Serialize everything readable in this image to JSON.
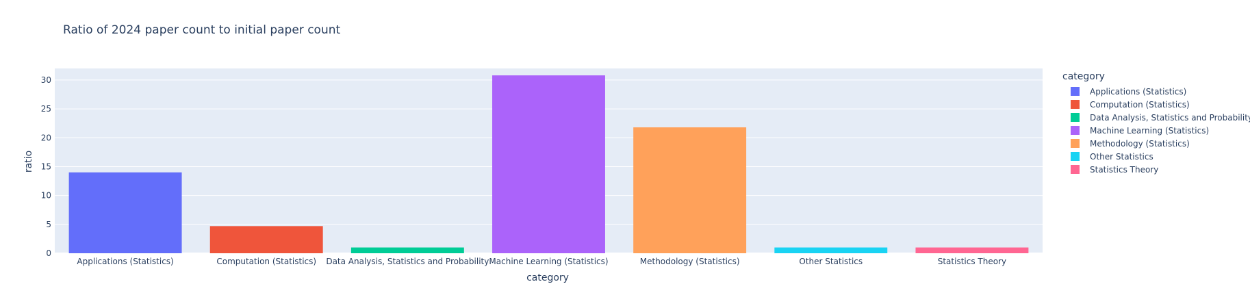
{
  "chart_data": {
    "type": "bar",
    "title": "Ratio of 2024 paper count to initial paper count",
    "xlabel": "category",
    "ylabel": "ratio",
    "ylim": [
      0,
      32
    ],
    "yticks": [
      0,
      5,
      10,
      15,
      20,
      25,
      30
    ],
    "grid": true,
    "legend_title": "category",
    "legend_position": "right",
    "categories": [
      "Applications (Statistics)",
      "Computation (Statistics)",
      "Data Analysis, Statistics and Probability",
      "Machine Learning (Statistics)",
      "Methodology (Statistics)",
      "Other Statistics",
      "Statistics Theory"
    ],
    "values": [
      14.0,
      4.7,
      1.0,
      30.8,
      21.8,
      1.0,
      1.0
    ],
    "colors": [
      "#636efa",
      "#ef553b",
      "#00cc96",
      "#ab63fa",
      "#ffa15a",
      "#19d3f3",
      "#ff6692"
    ],
    "plot_background": "#e5ecf6",
    "grid_color": "#ffffff"
  }
}
